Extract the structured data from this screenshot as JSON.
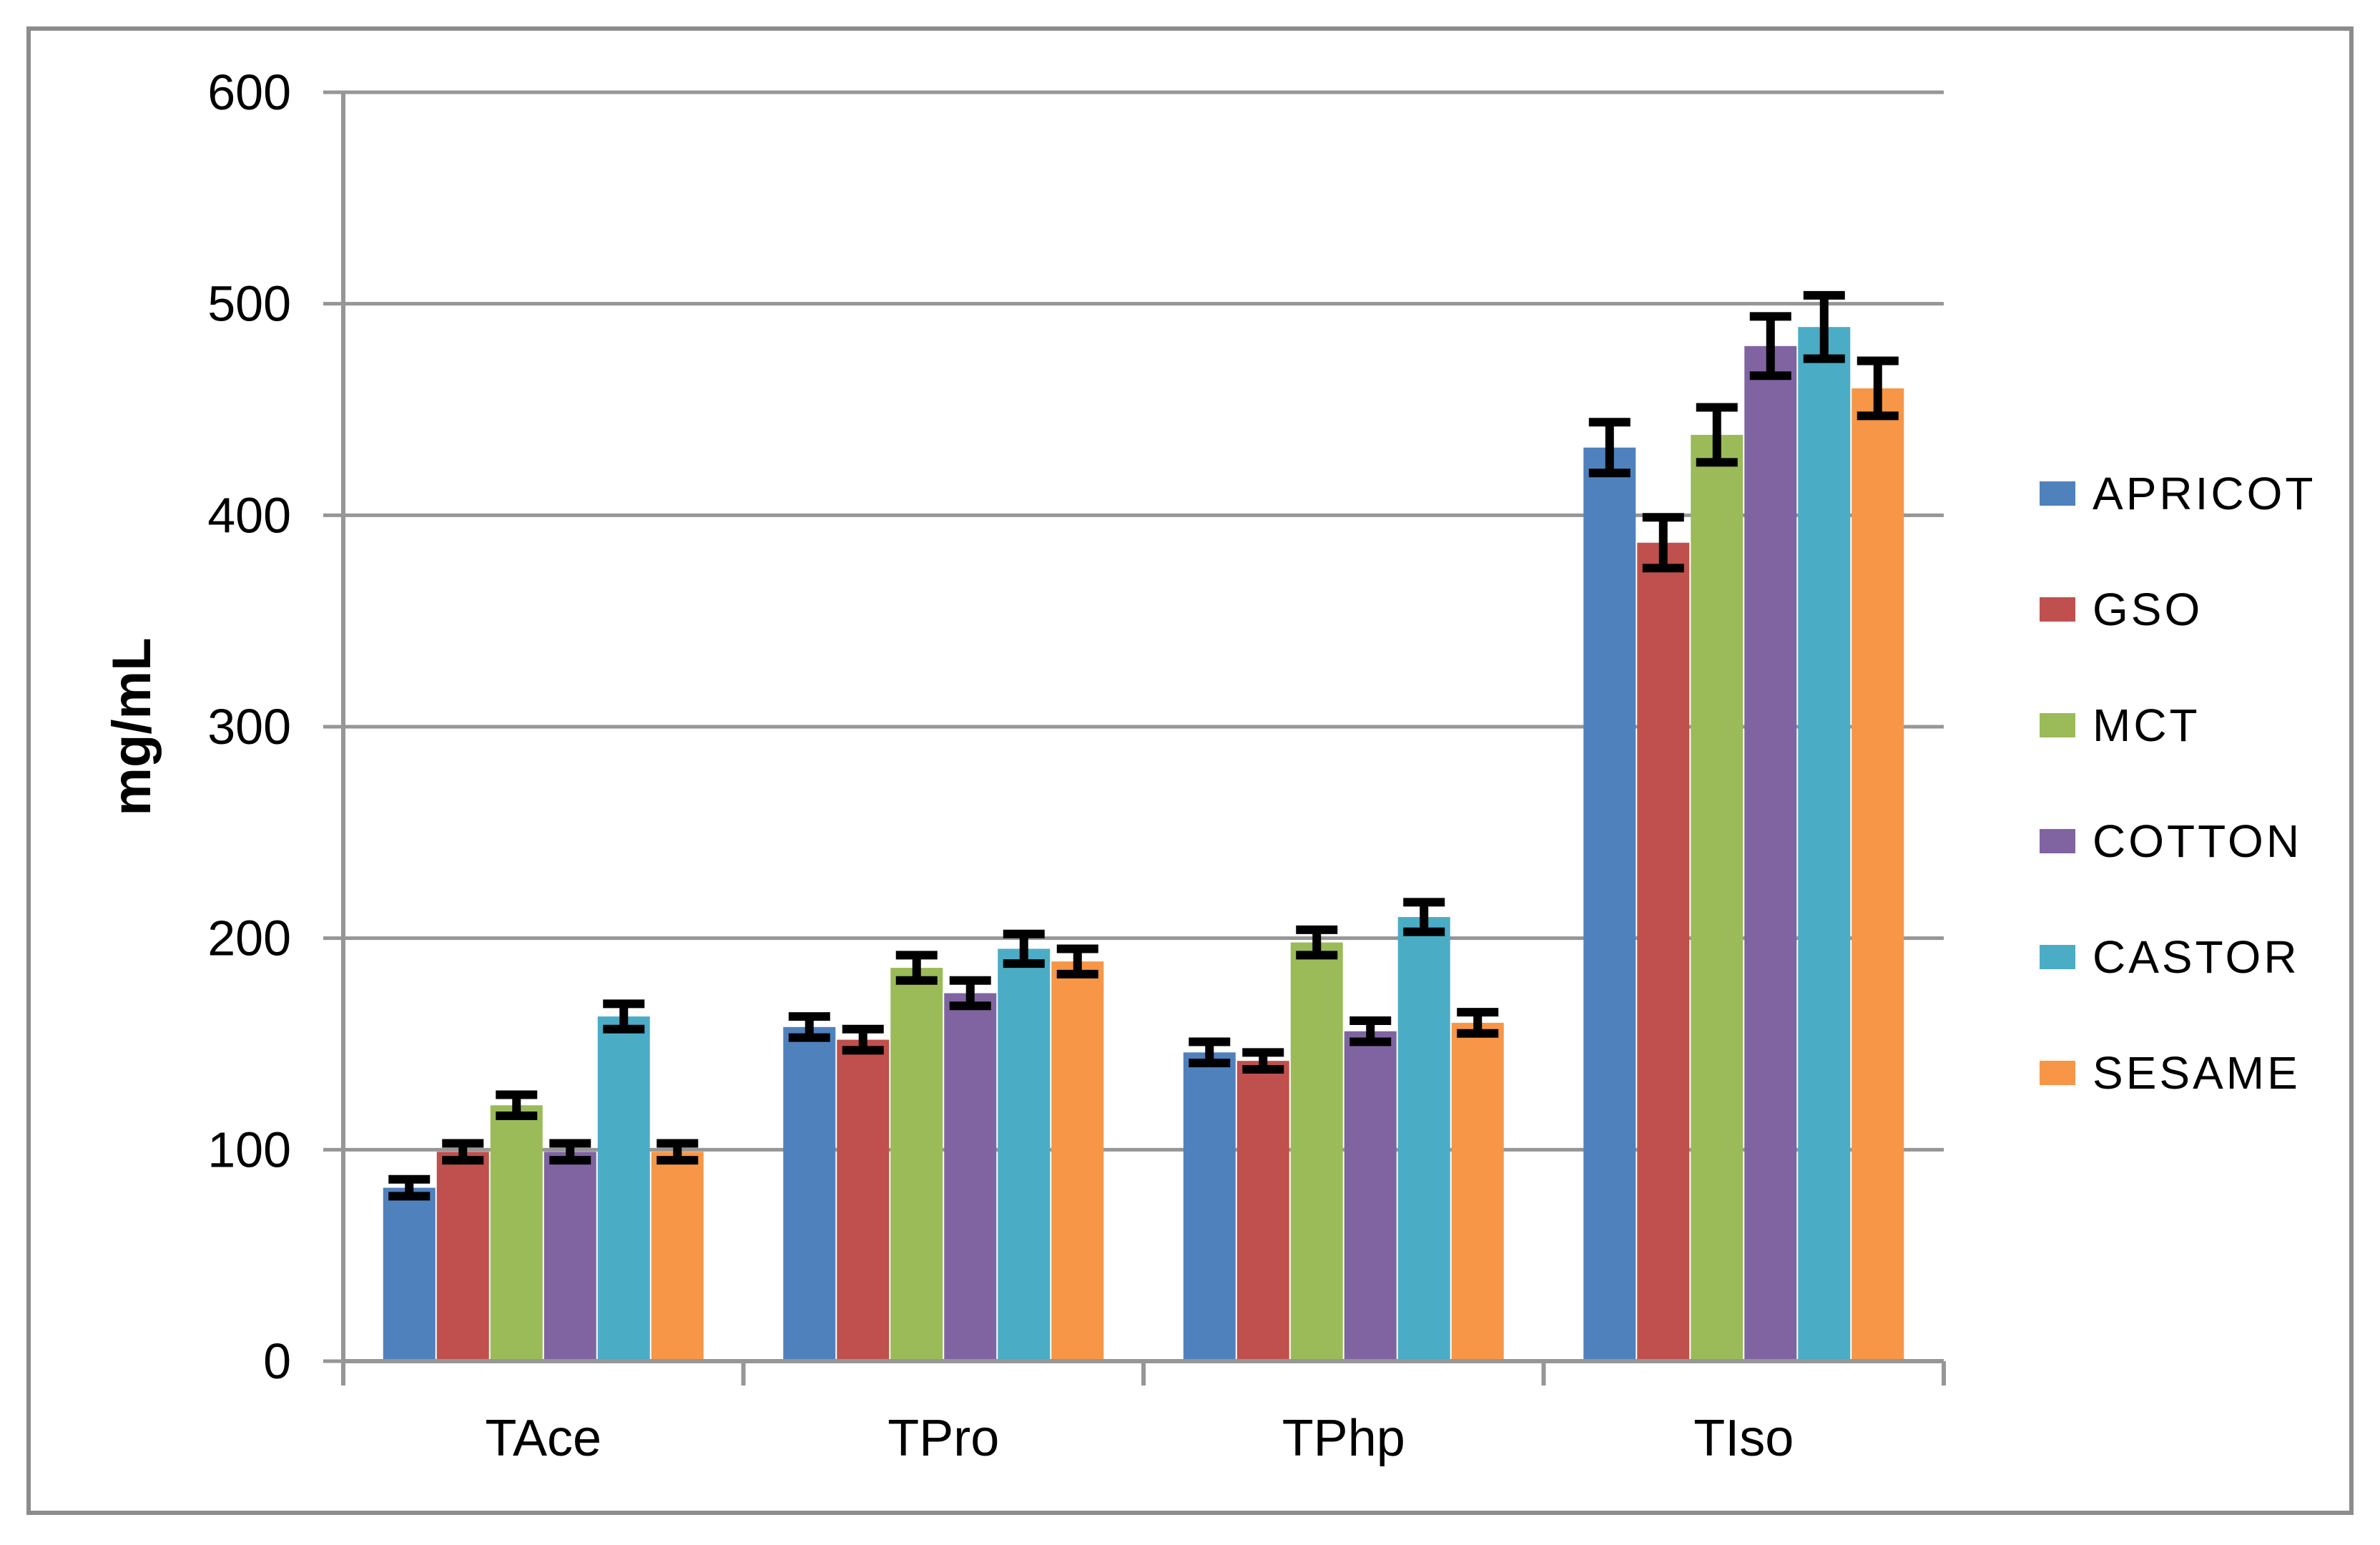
{
  "colors": {
    "background": "#FFFFFF",
    "frame": "#8C8C8C",
    "grid": "#969696",
    "axis": "#969696",
    "text": "#000000",
    "error_bar": "#000000"
  },
  "chart_data": {
    "type": "bar",
    "title": "",
    "xlabel": "",
    "ylabel": "mg/mL",
    "ylim": [
      0,
      600
    ],
    "yticks": [
      0,
      100,
      200,
      300,
      400,
      500,
      600
    ],
    "grid": true,
    "legend_position": "right",
    "categories": [
      "TAce",
      "TPro",
      "TPhp",
      "TIso"
    ],
    "series": [
      {
        "name": "APRICOT",
        "color": "#4F81BD",
        "values": [
          82,
          158,
          146,
          432
        ],
        "errors": [
          4,
          5,
          5,
          12
        ]
      },
      {
        "name": "GSO",
        "color": "#C0504D",
        "values": [
          99,
          152,
          142,
          387
        ],
        "errors": [
          4,
          5,
          4,
          12
        ]
      },
      {
        "name": "MCT",
        "color": "#9BBB59",
        "values": [
          121,
          186,
          198,
          438
        ],
        "errors": [
          5,
          6,
          6,
          13
        ]
      },
      {
        "name": "COTTON",
        "color": "#8064A2",
        "values": [
          99,
          174,
          156,
          480
        ],
        "errors": [
          4,
          6,
          5,
          14
        ]
      },
      {
        "name": "CASTOR",
        "color": "#4BACC6",
        "values": [
          163,
          195,
          210,
          489
        ],
        "errors": [
          6,
          7,
          7,
          15
        ]
      },
      {
        "name": "SESAME",
        "color": "#F79646",
        "values": [
          99,
          189,
          160,
          460
        ],
        "errors": [
          4,
          6,
          5,
          13
        ]
      }
    ]
  }
}
